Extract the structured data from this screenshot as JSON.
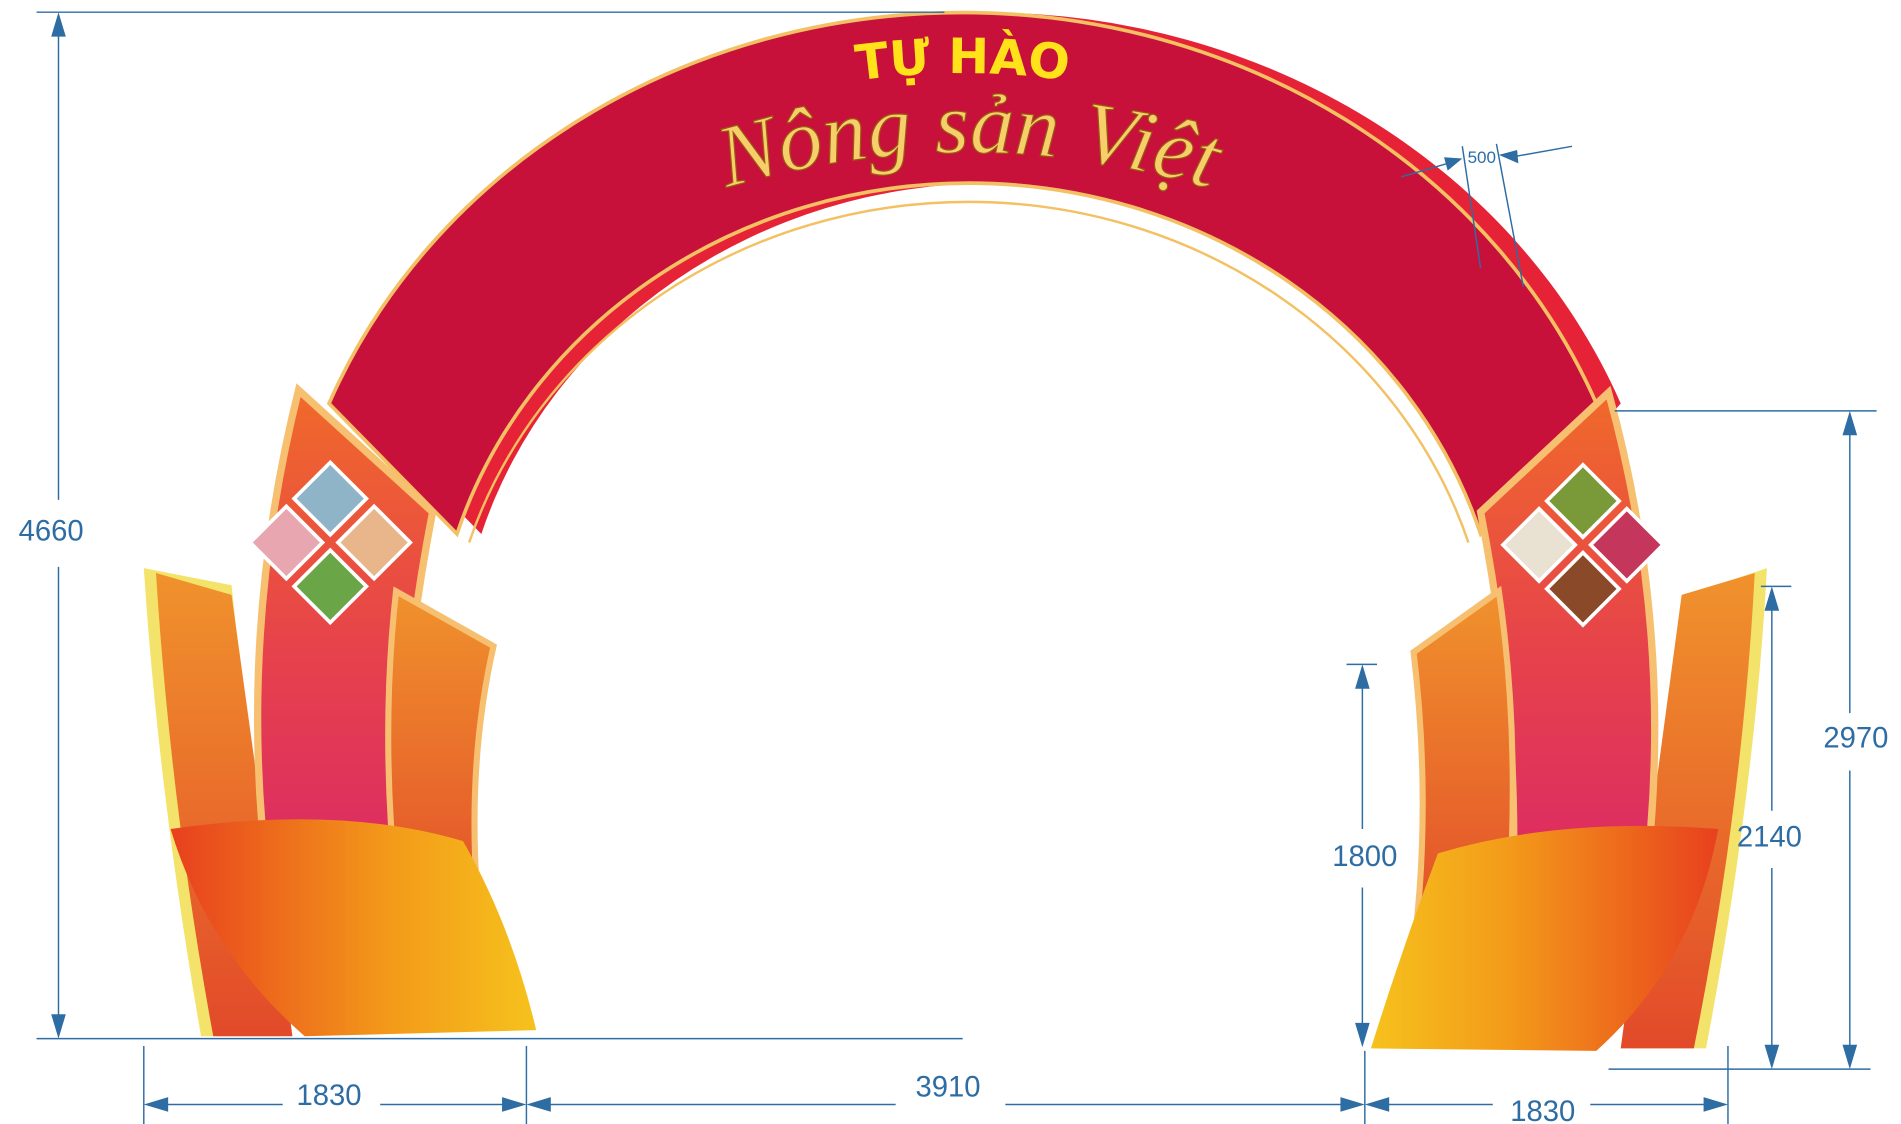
{
  "banner": {
    "title": "TỰ HÀO",
    "subtitle": "Nông sản Việt"
  },
  "dimensions": {
    "total_height": "4660",
    "band_width": "500",
    "right_pillar_height": "2970",
    "right_wing_height": "2140",
    "inner_wing_height": "1800",
    "left_base_width": "1830",
    "opening_width": "3910",
    "right_base_width": "1830"
  }
}
